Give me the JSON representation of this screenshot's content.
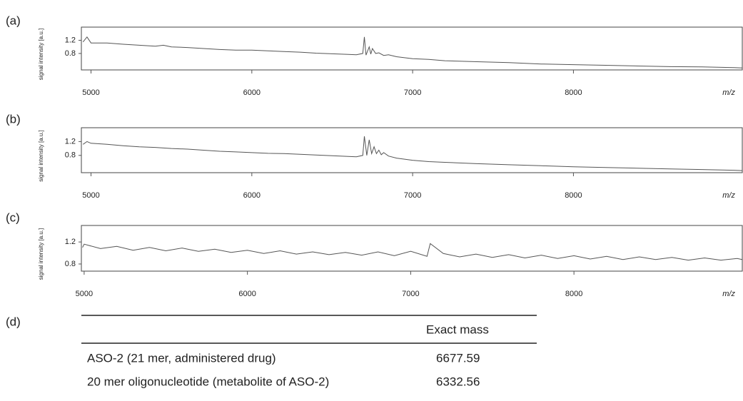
{
  "chart_data": [
    {
      "type": "line",
      "panel": "(a)",
      "ylabel": "signal intensity [a.u.]",
      "xlabel": "m/z",
      "color": "#555555",
      "x": [
        4950,
        4975,
        5000,
        5100,
        5200,
        5300,
        5400,
        5450,
        5500,
        5600,
        5700,
        5800,
        5900,
        6000,
        6100,
        6200,
        6300,
        6400,
        6500,
        6600,
        6650,
        6690,
        6700,
        6710,
        6730,
        6740,
        6750,
        6770,
        6790,
        6820,
        6850,
        6900,
        7000,
        7100,
        7200,
        7400,
        7600,
        7800,
        8000,
        8200,
        8400,
        8600,
        8800,
        9000,
        9050
      ],
      "values": [
        1.15,
        1.3,
        1.12,
        1.12,
        1.08,
        1.05,
        1.02,
        1.05,
        1.0,
        0.98,
        0.95,
        0.92,
        0.9,
        0.9,
        0.88,
        0.86,
        0.84,
        0.81,
        0.79,
        0.77,
        0.76,
        0.8,
        1.3,
        0.75,
        1.0,
        0.78,
        0.95,
        0.8,
        0.82,
        0.74,
        0.76,
        0.7,
        0.64,
        0.62,
        0.58,
        0.55,
        0.52,
        0.48,
        0.46,
        0.44,
        0.42,
        0.4,
        0.39,
        0.37,
        0.36
      ],
      "xlim": [
        4940,
        9050
      ],
      "ylim": [
        0.3,
        1.6
      ],
      "xticks": [
        5000,
        6000,
        7000,
        8000
      ],
      "yticks": [
        0.8,
        1.2
      ]
    },
    {
      "type": "line",
      "panel": "(b)",
      "ylabel": "signal intensity [a.u.]",
      "xlabel": "m/z",
      "color": "#555555",
      "x": [
        4950,
        4975,
        5000,
        5100,
        5200,
        5300,
        5400,
        5500,
        5600,
        5700,
        5800,
        5900,
        6000,
        6100,
        6200,
        6300,
        6400,
        6500,
        6600,
        6650,
        6690,
        6700,
        6715,
        6730,
        6745,
        6760,
        6775,
        6790,
        6805,
        6820,
        6850,
        6900,
        7000,
        7100,
        7200,
        7400,
        7600,
        7800,
        8000,
        8200,
        8400,
        8600,
        8800,
        9000,
        9050
      ],
      "values": [
        1.12,
        1.2,
        1.15,
        1.12,
        1.08,
        1.05,
        1.03,
        1.0,
        0.98,
        0.95,
        0.92,
        0.9,
        0.88,
        0.86,
        0.85,
        0.83,
        0.81,
        0.79,
        0.77,
        0.76,
        0.8,
        1.35,
        0.8,
        1.25,
        0.85,
        1.05,
        0.85,
        0.95,
        0.82,
        0.88,
        0.78,
        0.72,
        0.66,
        0.62,
        0.6,
        0.56,
        0.53,
        0.5,
        0.47,
        0.45,
        0.43,
        0.41,
        0.39,
        0.37,
        0.36
      ],
      "xlim": [
        4940,
        9050
      ],
      "ylim": [
        0.3,
        1.6
      ],
      "xticks": [
        5000,
        6000,
        7000,
        8000
      ],
      "yticks": [
        0.8,
        1.2
      ]
    },
    {
      "type": "line",
      "panel": "(c)",
      "ylabel": "signal intensity [a.u.]",
      "xlabel": "m/z",
      "color": "#555555",
      "x": [
        4990,
        5000,
        5100,
        5200,
        5300,
        5400,
        5500,
        5600,
        5700,
        5800,
        5900,
        6000,
        6100,
        6200,
        6300,
        6400,
        6500,
        6600,
        6700,
        6800,
        6900,
        7000,
        7100,
        7120,
        7200,
        7300,
        7400,
        7500,
        7600,
        7700,
        7800,
        7900,
        8000,
        8100,
        8200,
        8300,
        8400,
        8500,
        8600,
        8700,
        8800,
        8900,
        9000,
        9030
      ],
      "values": [
        1.1,
        1.16,
        1.08,
        1.12,
        1.05,
        1.1,
        1.04,
        1.09,
        1.03,
        1.07,
        1.01,
        1.05,
        0.99,
        1.04,
        0.98,
        1.02,
        0.97,
        1.01,
        0.96,
        1.02,
        0.95,
        1.03,
        0.94,
        1.17,
        0.99,
        0.93,
        0.98,
        0.92,
        0.97,
        0.91,
        0.96,
        0.9,
        0.95,
        0.89,
        0.94,
        0.88,
        0.93,
        0.88,
        0.92,
        0.87,
        0.91,
        0.87,
        0.9,
        0.88
      ],
      "xlim": [
        4983,
        9031
      ],
      "ylim": [
        0.67,
        1.5
      ],
      "xticks": [
        5000,
        6000,
        7000,
        8000
      ],
      "yticks": [
        0.8,
        1.2
      ]
    }
  ],
  "table": {
    "panel": "(d)",
    "header": [
      "",
      "Exact mass"
    ],
    "rows": [
      [
        "ASO-2 (21 mer, administered drug)",
        "6677.59"
      ],
      [
        "20 mer oligonucleotide (metabolite of ASO-2)",
        "6332.56"
      ]
    ]
  }
}
